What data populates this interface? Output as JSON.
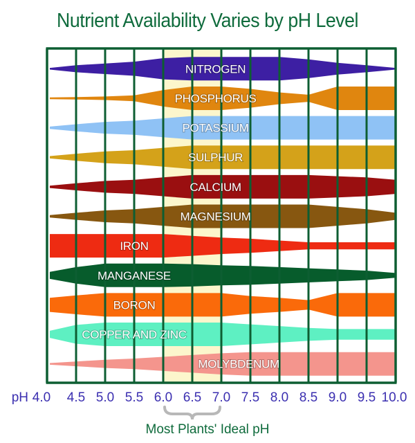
{
  "chart_data": {
    "type": "area",
    "title": "Nutrient Availability Varies by pH Level",
    "xlabel": "pH",
    "x_axis_prefix": "pH",
    "x": [
      4.0,
      4.5,
      5.0,
      5.5,
      6.0,
      6.5,
      7.0,
      7.5,
      8.0,
      8.5,
      9.0,
      9.5,
      10.0
    ],
    "x_tick_labels": [
      "4.0",
      "4.5",
      "5.0",
      "5.5",
      "6.0",
      "6.5",
      "7.0",
      "7.5",
      "8.0",
      "8.5",
      "9.0",
      "9.5",
      "10.0"
    ],
    "xlim": [
      4.0,
      10.0
    ],
    "grid": true,
    "highlight_range": {
      "from": 6.0,
      "to": 7.0,
      "color": "#fcf6cc",
      "label": "Most Plants' Ideal pH"
    },
    "value_meaning": "relative availability (band thickness, 0-1)",
    "series": [
      {
        "name": "NITROGEN",
        "color": "#3d1fa3",
        "label_x": 6.9,
        "values": [
          0.05,
          0.3,
          0.45,
          0.6,
          0.9,
          1.0,
          1.0,
          1.0,
          1.0,
          0.8,
          0.5,
          0.3,
          0.05
        ]
      },
      {
        "name": "PHOSPHORUS",
        "color": "#e0860f",
        "label_x": 6.9,
        "values": [
          0.05,
          0.1,
          0.15,
          0.25,
          0.7,
          1.0,
          1.0,
          0.8,
          0.5,
          0.3,
          1.0,
          1.0,
          1.0
        ]
      },
      {
        "name": "POTASSIUM",
        "color": "#8fc2f5",
        "label_x": 6.9,
        "values": [
          0.1,
          0.3,
          0.5,
          0.6,
          0.8,
          1.0,
          1.0,
          1.0,
          1.0,
          1.0,
          1.0,
          1.0,
          1.0
        ]
      },
      {
        "name": "SULPHUR",
        "color": "#d4a21a",
        "label_x": 6.9,
        "values": [
          0.1,
          0.3,
          0.5,
          0.6,
          0.8,
          1.0,
          1.0,
          1.0,
          1.0,
          1.0,
          1.0,
          1.0,
          1.0
        ]
      },
      {
        "name": "CALCIUM",
        "color": "#9a0f10",
        "label_x": 6.9,
        "values": [
          0.1,
          0.3,
          0.5,
          0.6,
          0.8,
          1.0,
          1.0,
          1.0,
          1.0,
          1.0,
          0.9,
          0.8,
          0.6
        ]
      },
      {
        "name": "MAGNESIUM",
        "color": "#875710",
        "label_x": 6.9,
        "values": [
          0.1,
          0.3,
          0.5,
          0.6,
          0.8,
          1.0,
          1.0,
          1.0,
          1.0,
          1.0,
          0.8,
          0.6,
          0.3
        ]
      },
      {
        "name": "IRON",
        "color": "#ee2b12",
        "label_x": 5.5,
        "values": [
          1.0,
          1.0,
          1.0,
          1.0,
          1.0,
          0.85,
          0.7,
          0.6,
          0.45,
          0.3,
          0.3,
          0.3,
          0.3
        ]
      },
      {
        "name": "MANGANESE",
        "color": "#075c2c",
        "label_x": 5.5,
        "values": [
          0.3,
          0.7,
          1.0,
          1.0,
          1.0,
          0.95,
          0.85,
          0.8,
          0.7,
          0.6,
          0.5,
          0.4,
          0.2
        ]
      },
      {
        "name": "BORON",
        "color": "#fa6a0a",
        "label_x": 5.5,
        "values": [
          0.6,
          0.8,
          1.0,
          1.0,
          1.0,
          1.0,
          1.0,
          0.75,
          0.6,
          0.4,
          1.0,
          1.0,
          1.0
        ]
      },
      {
        "name": "COPPER AND ZINC",
        "color": "#5ef0c2",
        "label_x": 5.5,
        "values": [
          0.3,
          0.8,
          1.0,
          1.0,
          1.0,
          1.0,
          1.0,
          0.85,
          0.7,
          0.55,
          0.45,
          0.45,
          0.45
        ]
      },
      {
        "name": "MOLYBDENUM",
        "color": "#f4958d",
        "label_x": 7.3,
        "values": [
          0.05,
          0.2,
          0.35,
          0.45,
          0.6,
          0.75,
          0.9,
          1.0,
          1.0,
          1.0,
          1.0,
          1.0,
          1.0
        ]
      }
    ]
  },
  "frame_color": "#0d5e32",
  "axis_color": "#3b2fb0"
}
